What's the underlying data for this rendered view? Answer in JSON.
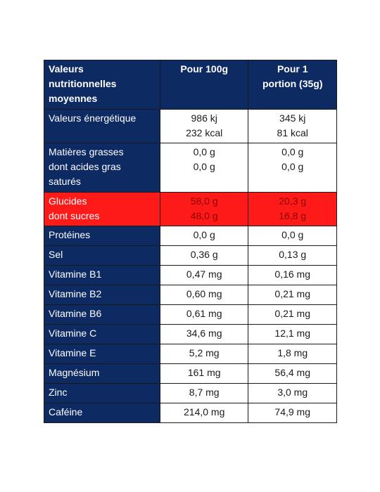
{
  "table": {
    "headers": {
      "label": [
        "Valeurs",
        "nutritionnelles",
        "moyennes"
      ],
      "per_100g": [
        "Pour 100g"
      ],
      "per_portion": [
        "Pour 1",
        "portion (35g)"
      ]
    },
    "rows": [
      {
        "label": [
          "Valeurs énergétique"
        ],
        "per_100g": [
          "986 kj",
          "232 kcal"
        ],
        "per_portion": [
          "345 kj",
          "81 kcal"
        ],
        "highlight": false
      },
      {
        "label": [
          "Matières grasses",
          "dont acides gras",
          "saturés"
        ],
        "per_100g": [
          "0,0 g",
          "0,0 g"
        ],
        "per_portion": [
          "0,0 g",
          "0,0 g"
        ],
        "highlight": false
      },
      {
        "label": [
          "Glucides",
          "dont sucres"
        ],
        "per_100g": [
          "58,0 g",
          "48,0 g"
        ],
        "per_portion": [
          "20,3 g",
          "16,8 g"
        ],
        "highlight": true
      },
      {
        "label": [
          "Protéines"
        ],
        "per_100g": [
          "0,0 g"
        ],
        "per_portion": [
          "0,0 g"
        ],
        "highlight": false
      },
      {
        "label": [
          "Sel"
        ],
        "per_100g": [
          "0,36 g"
        ],
        "per_portion": [
          "0,13 g"
        ],
        "highlight": false
      },
      {
        "label": [
          "Vitamine B1"
        ],
        "per_100g": [
          "0,47 mg"
        ],
        "per_portion": [
          "0,16 mg"
        ],
        "highlight": false
      },
      {
        "label": [
          "Vitamine B2"
        ],
        "per_100g": [
          "0,60 mg"
        ],
        "per_portion": [
          "0,21 mg"
        ],
        "highlight": false
      },
      {
        "label": [
          "Vitamine B6"
        ],
        "per_100g": [
          "0,61 mg"
        ],
        "per_portion": [
          "0,21 mg"
        ],
        "highlight": false
      },
      {
        "label": [
          "Vitamine C"
        ],
        "per_100g": [
          "34,6 mg"
        ],
        "per_portion": [
          "12,1 mg"
        ],
        "highlight": false
      },
      {
        "label": [
          "Vitamine E"
        ],
        "per_100g": [
          "5,2 mg"
        ],
        "per_portion": [
          "1,8 mg"
        ],
        "highlight": false
      },
      {
        "label": [
          "Magnésium"
        ],
        "per_100g": [
          "161 mg"
        ],
        "per_portion": [
          "56,4 mg"
        ],
        "highlight": false
      },
      {
        "label": [
          "Zinc"
        ],
        "per_100g": [
          "8,7 mg"
        ],
        "per_portion": [
          "3,0 mg"
        ],
        "highlight": false
      },
      {
        "label": [
          "Caféine"
        ],
        "per_100g": [
          "214,0 mg"
        ],
        "per_portion": [
          "74,9 mg"
        ],
        "highlight": false
      }
    ]
  },
  "colors": {
    "header_background": "#0d2a63",
    "header_text": "#ffffff",
    "highlight_background": "#ff1a1a",
    "highlight_value_text": "#8b0000",
    "cell_background": "#ffffff",
    "border": "#1a1a1a"
  }
}
